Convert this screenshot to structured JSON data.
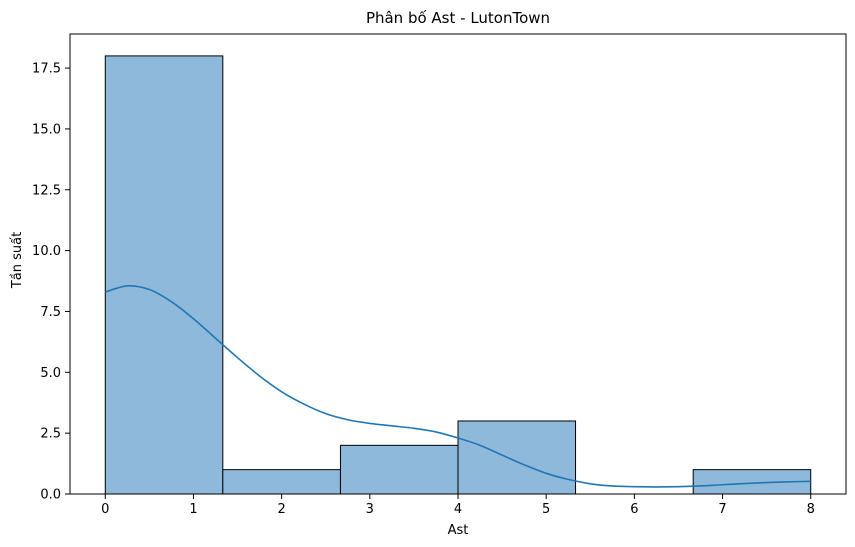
{
  "chart_data": {
    "type": "bar",
    "title": "Phân bố Ast - LutonTown",
    "xlabel": "Ast",
    "ylabel": "Tần suất",
    "xlim": [
      -0.4,
      8.4
    ],
    "ylim": [
      0,
      18.9
    ],
    "x_ticks": [
      0,
      1,
      2,
      3,
      4,
      5,
      6,
      7,
      8
    ],
    "y_ticks": [
      0.0,
      2.5,
      5.0,
      7.5,
      10.0,
      12.5,
      15.0,
      17.5
    ],
    "bins": [
      {
        "start": 0.0,
        "end": 1.333,
        "value": 18
      },
      {
        "start": 1.333,
        "end": 2.667,
        "value": 1
      },
      {
        "start": 2.667,
        "end": 4.0,
        "value": 2
      },
      {
        "start": 4.0,
        "end": 5.333,
        "value": 3
      },
      {
        "start": 5.333,
        "end": 6.667,
        "value": 0
      },
      {
        "start": 6.667,
        "end": 8.0,
        "value": 1
      }
    ],
    "kde": {
      "x": [
        0,
        0.25,
        0.5,
        0.75,
        1.0,
        1.25,
        1.5,
        1.75,
        2.0,
        2.25,
        2.5,
        2.75,
        3.0,
        3.25,
        3.5,
        3.75,
        4.0,
        4.25,
        4.5,
        4.75,
        5.0,
        5.25,
        5.5,
        5.75,
        6.0,
        6.25,
        6.5,
        6.75,
        7.0,
        7.25,
        7.5,
        7.75,
        8.0
      ],
      "y": [
        8.3,
        8.55,
        8.4,
        7.9,
        7.2,
        6.4,
        5.6,
        4.85,
        4.2,
        3.7,
        3.3,
        3.05,
        2.9,
        2.8,
        2.7,
        2.55,
        2.3,
        2.0,
        1.6,
        1.2,
        0.85,
        0.6,
        0.42,
        0.33,
        0.3,
        0.29,
        0.3,
        0.33,
        0.38,
        0.43,
        0.47,
        0.5,
        0.52
      ]
    },
    "bar_fill": "#8fb9da",
    "bar_edge": "#000000",
    "kde_color": "#1f77b4",
    "grid": false,
    "legend": "none"
  }
}
